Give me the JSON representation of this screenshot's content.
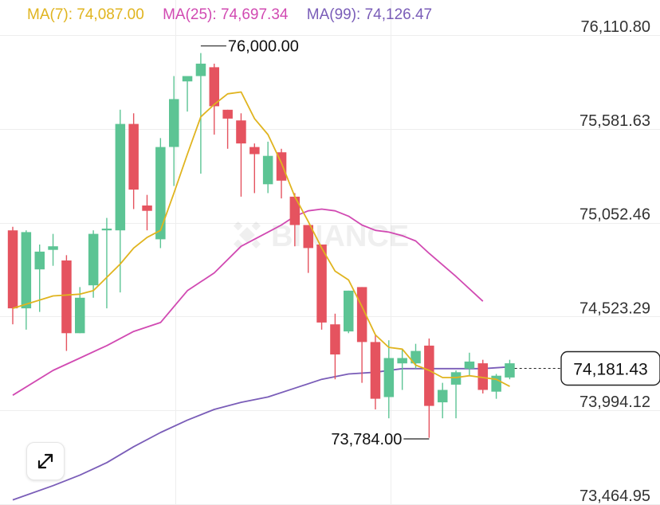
{
  "ma_legend": {
    "ma7": {
      "label": "MA(7): 74,087.00",
      "color": "#e0b41f"
    },
    "ma25": {
      "label": "MA(25): 74,697.34",
      "color": "#d14ab2"
    },
    "ma99": {
      "label": "MA(99): 74,126.47",
      "color": "#7a5db8"
    }
  },
  "watermark": "BINANCE",
  "expand_icon": "expand-arrows-icon",
  "colors": {
    "up": "#5cc494",
    "down": "#e5535f",
    "grid": "#eeeeee",
    "axis_text": "#333333"
  },
  "chart_data": {
    "type": "candlestick",
    "ylim": [
      73400,
      76200
    ],
    "y_ticks": [
      "76,110.80",
      "75,581.63",
      "75,052.46",
      "74,523.29",
      "73,994.12",
      "73,464.95"
    ],
    "y_tick_values": [
      76110.8,
      75581.63,
      75052.46,
      74523.29,
      73994.12,
      73464.95
    ],
    "current_price": {
      "label": "74,181.43",
      "value": 74181.43
    },
    "high_marker": {
      "label": "76,000.00",
      "value": 76000,
      "candle": 14
    },
    "low_marker": {
      "label": "73,784.00",
      "value": 73784,
      "candle": 31
    },
    "candles": [
      [
        74960,
        74520,
        74980,
        74430
      ],
      [
        74520,
        74950,
        74960,
        74400
      ],
      [
        74740,
        74840,
        74880,
        74500
      ],
      [
        74850,
        74870,
        74940,
        74760
      ],
      [
        74790,
        74380,
        74820,
        74280
      ],
      [
        74380,
        74580,
        74640,
        74380
      ],
      [
        74650,
        74940,
        74960,
        74580
      ],
      [
        74960,
        74970,
        75030,
        74520
      ],
      [
        74960,
        75560,
        75640,
        74610
      ],
      [
        75560,
        75190,
        75620,
        75080
      ],
      [
        75100,
        75070,
        75160,
        74960
      ],
      [
        74910,
        75430,
        75480,
        74860
      ],
      [
        75430,
        75700,
        75830,
        75210
      ],
      [
        75800,
        75830,
        75830,
        75630
      ],
      [
        75830,
        75900,
        75960,
        75280
      ],
      [
        75880,
        75660,
        75900,
        75500
      ],
      [
        75640,
        75590,
        75640,
        75420
      ],
      [
        75580,
        75450,
        75620,
        75150
      ],
      [
        75430,
        75390,
        75450,
        75170
      ],
      [
        75220,
        75380,
        75460,
        75170
      ],
      [
        75400,
        75240,
        75420,
        75140
      ],
      [
        75150,
        74990,
        75170,
        74870
      ],
      [
        74990,
        74860,
        74980,
        74720
      ],
      [
        74880,
        74440,
        74880,
        74400
      ],
      [
        74430,
        74260,
        74490,
        74120
      ],
      [
        74390,
        74620,
        74620,
        74380
      ],
      [
        74640,
        74330,
        74640,
        74100
      ],
      [
        74330,
        74010,
        74370,
        73950
      ],
      [
        74020,
        74240,
        74340,
        73900
      ],
      [
        74210,
        74240,
        74290,
        74060
      ],
      [
        74210,
        74280,
        74320,
        74180
      ],
      [
        74310,
        73970,
        74350,
        73790
      ],
      [
        73990,
        74060,
        74100,
        73900
      ],
      [
        74090,
        74160,
        74170,
        73900
      ],
      [
        74180,
        74220,
        74270,
        74140
      ],
      [
        74210,
        74060,
        74230,
        74040
      ],
      [
        74050,
        74140,
        74150,
        74010
      ],
      [
        74130,
        74210,
        74230,
        74120
      ]
    ],
    "ma7": [
      [
        0,
        74520
      ],
      [
        3,
        74590
      ],
      [
        5,
        74600
      ],
      [
        6,
        74620
      ],
      [
        8,
        74770
      ],
      [
        9,
        74860
      ],
      [
        10,
        74920
      ],
      [
        11,
        74960
      ],
      [
        12,
        75170
      ],
      [
        13,
        75390
      ],
      [
        14,
        75600
      ],
      [
        15,
        75670
      ],
      [
        16,
        75730
      ],
      [
        17,
        75740
      ],
      [
        18,
        75590
      ],
      [
        19,
        75500
      ],
      [
        20,
        75340
      ],
      [
        21,
        75150
      ],
      [
        22,
        75010
      ],
      [
        23,
        74860
      ],
      [
        24,
        74730
      ],
      [
        25,
        74680
      ],
      [
        26,
        74530
      ],
      [
        27,
        74370
      ],
      [
        28,
        74300
      ],
      [
        29,
        74290
      ],
      [
        30,
        74200
      ],
      [
        31,
        74170
      ],
      [
        32,
        74130
      ],
      [
        33,
        74130
      ],
      [
        34,
        74140
      ],
      [
        35,
        74130
      ],
      [
        36,
        74120
      ],
      [
        37,
        74080
      ]
    ],
    "ma25": [
      [
        0,
        74030
      ],
      [
        3,
        74170
      ],
      [
        5,
        74240
      ],
      [
        7,
        74310
      ],
      [
        9,
        74390
      ],
      [
        11,
        74440
      ],
      [
        13,
        74620
      ],
      [
        15,
        74720
      ],
      [
        17,
        74870
      ],
      [
        19,
        74950
      ],
      [
        20,
        74990
      ],
      [
        21,
        75040
      ],
      [
        22,
        75070
      ],
      [
        23,
        75080
      ],
      [
        24,
        75070
      ],
      [
        25,
        75040
      ],
      [
        26,
        74990
      ],
      [
        27,
        74960
      ],
      [
        28,
        74950
      ],
      [
        29,
        74930
      ],
      [
        30,
        74900
      ],
      [
        31,
        74830
      ],
      [
        33,
        74700
      ],
      [
        35,
        74560
      ]
    ],
    "ma99": [
      [
        0,
        73440
      ],
      [
        3,
        73520
      ],
      [
        5,
        73580
      ],
      [
        7,
        73650
      ],
      [
        9,
        73740
      ],
      [
        11,
        73820
      ],
      [
        13,
        73890
      ],
      [
        15,
        73950
      ],
      [
        17,
        73990
      ],
      [
        19,
        74020
      ],
      [
        21,
        74070
      ],
      [
        23,
        74120
      ],
      [
        25,
        74150
      ],
      [
        27,
        74160
      ],
      [
        29,
        74180
      ],
      [
        31,
        74180
      ],
      [
        33,
        74180
      ],
      [
        35,
        74180
      ],
      [
        37,
        74190
      ]
    ]
  }
}
